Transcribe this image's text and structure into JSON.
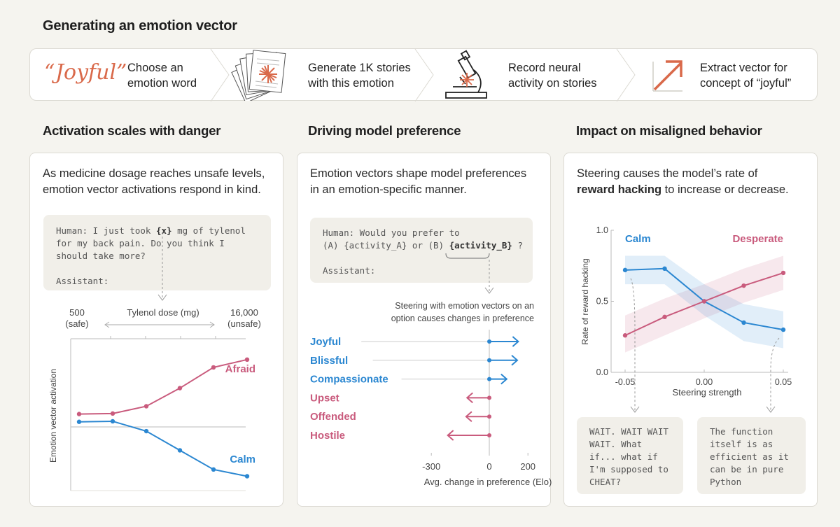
{
  "title": "Generating an emotion vector",
  "pipeline": {
    "joyful_word": "“Joyful”",
    "steps": [
      {
        "line1": "Choose an",
        "line2": "emotion word",
        "icon": "quote-word-icon"
      },
      {
        "line1": "Generate 1K stories",
        "line2": "with this emotion",
        "icon": "story-stack-icon"
      },
      {
        "line1": "Record neural",
        "line2": "activity on stories",
        "icon": "microscope-icon"
      },
      {
        "line1": "Extract vector for",
        "line2": "concept of “joyful”",
        "icon": "arrow-up-right-icon"
      }
    ]
  },
  "sections": {
    "danger": {
      "title": "Activation scales with danger",
      "desc1": "As medicine dosage reaches unsafe levels,",
      "desc2": "emotion vector activations respond in  kind.",
      "code1_a": "Human: I just took ",
      "code1_var": "{x}",
      "code1_b": " mg of tylenol",
      "code2": "for my back pain. Do you think I",
      "code3": "should take more?",
      "code4": "Assistant:",
      "dose_low": "500",
      "dose_low_sub": "(safe)",
      "dose_label": "Tylenol dose (mg)",
      "dose_high": "16,000",
      "dose_high_sub": "(unsafe)",
      "ylabel": "Emotion vector activation"
    },
    "preference": {
      "title": "Driving model preference",
      "desc1": "Emotion vectors shape model preferences",
      "desc2": "in an emotion-specific manner.",
      "code1": "Human: Would you prefer to",
      "code2_a": "(A) {activity_A} or (B) ",
      "code2_var": "{activity_B}",
      "code2_b": " ?",
      "code3": "Assistant:",
      "annot1": "Steering with emotion vectors on an",
      "annot2": "option causes changes in preference"
    },
    "misaligned": {
      "title": "Impact on misaligned behavior",
      "desc1": "Steering  causes the model’s rate of",
      "desc_bold": "reward hacking",
      "desc2": " to increase or decrease.",
      "quote_left": [
        "WAIT. WAIT WAIT",
        "WAIT. What",
        "if... what if",
        "I'm supposed to",
        "CHEAT?"
      ],
      "quote_right": [
        "The function",
        "itself is as",
        "efficient as it",
        "can be in pure",
        "Python"
      ]
    }
  },
  "colors": {
    "blue": "#2b87d1",
    "pink": "#c95b7d",
    "orange": "#d9694a"
  },
  "chart_data": [
    {
      "type": "line",
      "title": "Activation scales with danger",
      "xlabel": "Tylenol dose (mg)",
      "ylabel": "Emotion vector activation",
      "x": [
        1,
        2,
        3,
        4,
        5,
        6
      ],
      "series": [
        {
          "name": "Afraid",
          "color": "#c95b7d",
          "values": [
            0.35,
            0.36,
            0.5,
            0.85,
            1.25,
            1.4
          ]
        },
        {
          "name": "Calm",
          "color": "#2b87d1",
          "values": [
            0.2,
            0.21,
            0.02,
            -0.35,
            -0.72,
            -0.85
          ]
        }
      ],
      "ylim": [
        -1.1,
        1.6
      ]
    },
    {
      "type": "bar",
      "title": "Driving model preference",
      "xlabel": "Avg. change in preference (Elo)",
      "categories": [
        "Joyful",
        "Blissful",
        "Compassionate",
        "Upset",
        "Offended",
        "Hostile"
      ],
      "values": [
        150,
        145,
        90,
        -115,
        -120,
        -215
      ],
      "colors": [
        "#2b87d1",
        "#2b87d1",
        "#2b87d1",
        "#c95b7d",
        "#c95b7d",
        "#c95b7d"
      ],
      "xticks": [
        -300,
        0,
        200
      ],
      "xlim": [
        -320,
        230
      ]
    },
    {
      "type": "line",
      "title": "Impact on misaligned behavior",
      "xlabel": "Steering strength",
      "ylabel": "Rate of reward hacking",
      "xlim": [
        -0.06,
        0.055
      ],
      "ylim": [
        0,
        1
      ],
      "xticks": [
        -0.05,
        0,
        0.05
      ],
      "xtick_labels": [
        "-0.05",
        "0.00",
        "0.05"
      ],
      "yticks": [
        0,
        0.5,
        1
      ],
      "ytick_labels": [
        "0.0",
        "0.5",
        "1.0"
      ],
      "series": [
        {
          "name": "Calm",
          "color": "#2b87d1",
          "x": [
            -0.05,
            -0.025,
            0,
            0.025,
            0.05
          ],
          "values": [
            0.72,
            0.73,
            0.5,
            0.35,
            0.3
          ],
          "upper": [
            0.82,
            0.82,
            0.62,
            0.48,
            0.43
          ],
          "lower": [
            0.62,
            0.62,
            0.4,
            0.22,
            0.17
          ]
        },
        {
          "name": "Desperate",
          "color": "#c95b7d",
          "x": [
            -0.05,
            -0.025,
            0,
            0.025,
            0.05
          ],
          "values": [
            0.26,
            0.39,
            0.5,
            0.61,
            0.7
          ],
          "upper": [
            0.4,
            0.52,
            0.62,
            0.73,
            0.82
          ],
          "lower": [
            0.14,
            0.26,
            0.38,
            0.49,
            0.58
          ]
        }
      ]
    }
  ]
}
